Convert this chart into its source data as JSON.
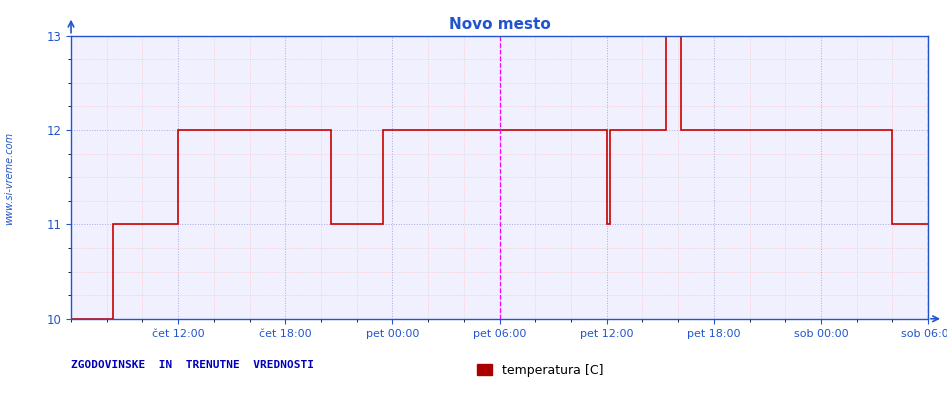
{
  "title": "Novo mesto",
  "ylabel_text": "www.si-vreme.com",
  "bottom_left_text": "ZGODOVINSKE  IN  TRENUTNE  VREDNOSTI",
  "legend_label": "temperatura [C]",
  "legend_color": "#aa0000",
  "background_color": "#ffffff",
  "plot_bg_color": "#f0f0ff",
  "line_color": "#cc0000",
  "axis_color": "#2255cc",
  "grid_color_major": "#aaaadd",
  "grid_color_minor": "#ffbbbb",
  "title_color": "#2255cc",
  "ylabel_color": "#2255cc",
  "xlim_min": 0,
  "xlim_max": 576,
  "ylim_min": 10,
  "ylim_max": 13,
  "yticks": [
    10,
    11,
    12,
    13
  ],
  "xtick_positions": [
    72,
    144,
    216,
    288,
    360,
    432,
    504,
    576
  ],
  "xtick_labels": [
    "čet 12:00",
    "čet 18:00",
    "pet 00:00",
    "pet 06:00",
    "pet 12:00",
    "pet 18:00",
    "sob 00:00",
    "sob 06:00"
  ],
  "vlines_magenta": [
    288,
    576
  ],
  "temperature_x": [
    0,
    28,
    28,
    72,
    72,
    175,
    175,
    210,
    210,
    288,
    288,
    360,
    360,
    362,
    362,
    400,
    400,
    410,
    410,
    432,
    432,
    503,
    503,
    552,
    552,
    576
  ],
  "temperature_y": [
    10,
    10,
    11,
    11,
    12,
    12,
    11,
    11,
    12,
    12,
    12,
    12,
    11,
    11,
    12,
    12,
    13,
    13,
    12,
    12,
    12,
    12,
    12,
    12,
    11,
    11
  ]
}
